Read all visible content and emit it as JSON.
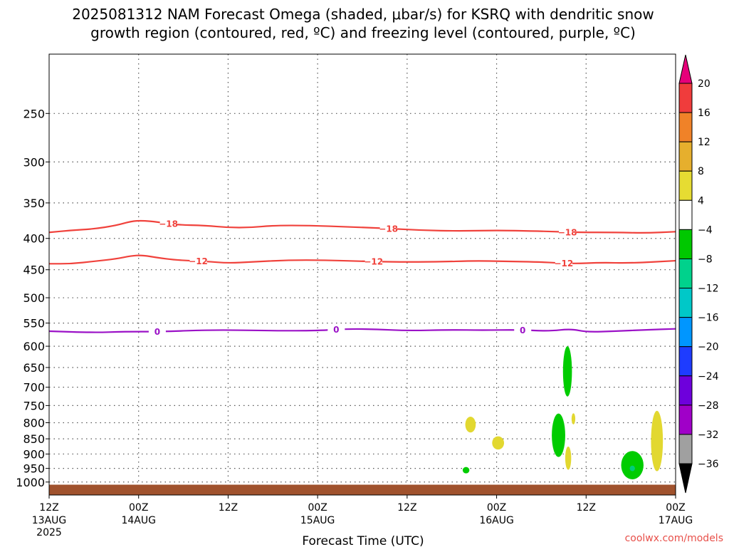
{
  "title": {
    "line1": "2025081312 NAM Forecast Omega (shaded, μbar/s) for KSRQ with dendritic snow",
    "line2": "growth region (contoured, red, ºC) and freezing level (contoured, purple, ºC)"
  },
  "watermark": "coolwx.com/models",
  "chart_data": {
    "type": "time-height cross section",
    "xlabel": "Forecast Time (UTC)",
    "x_range_hours": [
      0,
      84
    ],
    "y_scale": "log-pressure",
    "y_range_hPa": [
      1050,
      200
    ],
    "x_ticks": [
      {
        "hour": 0,
        "label": "12Z",
        "sub": "13AUG",
        "sub2": "2025"
      },
      {
        "hour": 12,
        "label": "00Z",
        "sub": "14AUG",
        "sub2": ""
      },
      {
        "hour": 24,
        "label": "12Z",
        "sub": "",
        "sub2": ""
      },
      {
        "hour": 36,
        "label": "00Z",
        "sub": "15AUG",
        "sub2": ""
      },
      {
        "hour": 48,
        "label": "12Z",
        "sub": "",
        "sub2": ""
      },
      {
        "hour": 60,
        "label": "00Z",
        "sub": "16AUG",
        "sub2": ""
      },
      {
        "hour": 72,
        "label": "12Z",
        "sub": "",
        "sub2": ""
      },
      {
        "hour": 84,
        "label": "00Z",
        "sub": "17AUG",
        "sub2": ""
      }
    ],
    "y_ticks": [
      250,
      300,
      350,
      400,
      450,
      500,
      550,
      600,
      650,
      700,
      750,
      800,
      850,
      900,
      950,
      1000
    ],
    "grid": true,
    "contours": [
      {
        "name": "-18",
        "color": "#f0423c",
        "labels_at_hours": [
          16,
          45.5,
          69.5
        ],
        "points": [
          [
            0,
            391
          ],
          [
            3,
            388
          ],
          [
            6,
            386
          ],
          [
            9,
            381
          ],
          [
            11,
            375
          ],
          [
            12.5,
            374
          ],
          [
            14.5,
            376
          ],
          [
            17,
            380
          ],
          [
            21,
            381
          ],
          [
            24,
            384
          ],
          [
            27,
            384
          ],
          [
            30,
            381
          ],
          [
            35,
            381
          ],
          [
            40,
            383
          ],
          [
            45,
            385
          ],
          [
            50,
            388
          ],
          [
            55,
            389
          ],
          [
            60,
            388
          ],
          [
            65,
            389
          ],
          [
            68,
            390
          ],
          [
            71,
            391
          ],
          [
            76,
            391
          ],
          [
            80,
            392
          ],
          [
            84,
            390
          ]
        ]
      },
      {
        "name": "-12",
        "color": "#f0423c",
        "labels_at_hours": [
          20,
          43.5,
          69
        ],
        "points": [
          [
            0,
            440
          ],
          [
            3,
            440
          ],
          [
            6,
            436
          ],
          [
            9,
            432
          ],
          [
            11,
            427
          ],
          [
            12.5,
            426
          ],
          [
            14.5,
            430
          ],
          [
            17,
            434
          ],
          [
            21,
            436
          ],
          [
            24,
            439
          ],
          [
            27,
            437
          ],
          [
            32,
            434
          ],
          [
            37,
            434
          ],
          [
            42,
            436
          ],
          [
            47,
            437
          ],
          [
            52,
            437
          ],
          [
            57,
            435
          ],
          [
            61,
            436
          ],
          [
            66,
            437
          ],
          [
            70,
            440
          ],
          [
            74,
            438
          ],
          [
            78,
            439
          ],
          [
            84,
            435
          ]
        ]
      },
      {
        "name": "0",
        "color": "#9b12c7",
        "labels_at_hours": [
          14.5,
          38.5,
          63.5
        ],
        "points": [
          [
            0,
            567
          ],
          [
            6,
            570
          ],
          [
            10,
            568
          ],
          [
            15,
            568
          ],
          [
            22,
            564
          ],
          [
            30,
            566
          ],
          [
            36,
            566
          ],
          [
            40,
            562
          ],
          [
            44,
            563
          ],
          [
            48,
            566
          ],
          [
            54,
            564
          ],
          [
            58,
            565
          ],
          [
            63,
            564
          ],
          [
            67,
            567
          ],
          [
            70,
            562
          ],
          [
            72,
            569
          ],
          [
            76,
            567
          ],
          [
            80,
            564
          ],
          [
            84,
            562
          ]
        ]
      }
    ],
    "omega_blobs": [
      {
        "range": "-8 to -4",
        "color": "#00cc00",
        "center_hour": 69.5,
        "center_hPa": 655,
        "hour_halfwidth": 0.6,
        "hPa_top": 600,
        "hPa_bottom": 725
      },
      {
        "range": "4 to 8",
        "color": "#e2d830",
        "center_hour": 56.5,
        "center_hPa": 805,
        "hour_halfwidth": 0.7,
        "hPa_top": 782,
        "hPa_bottom": 830
      },
      {
        "range": "4 to 8",
        "color": "#e2d830",
        "center_hour": 60.2,
        "center_hPa": 863,
        "hour_halfwidth": 0.8,
        "hPa_top": 842,
        "hPa_bottom": 885
      },
      {
        "range": "-8 to -4",
        "color": "#00cc00",
        "center_hour": 68.3,
        "center_hPa": 830,
        "hour_halfwidth": 0.9,
        "hPa_top": 773,
        "hPa_bottom": 910
      },
      {
        "range": "4 to 8",
        "color": "#e2d830",
        "center_hour": 70.3,
        "center_hPa": 792,
        "hour_halfwidth": 0.25,
        "hPa_top": 772,
        "hPa_bottom": 805
      },
      {
        "range": "4 to 8",
        "color": "#e2d830",
        "center_hour": 69.6,
        "center_hPa": 910,
        "hour_halfwidth": 0.4,
        "hPa_top": 875,
        "hPa_bottom": 955
      },
      {
        "range": "4 to 8",
        "color": "#e2d830",
        "center_hour": 81.5,
        "center_hPa": 860,
        "hour_halfwidth": 0.8,
        "hPa_top": 765,
        "hPa_bottom": 960
      },
      {
        "range": "-8 to -4",
        "color": "#00cc00",
        "center_hour": 78.2,
        "center_hPa": 935,
        "hour_halfwidth": 1.5,
        "hPa_top": 890,
        "hPa_bottom": 990
      },
      {
        "range": "-8 to -4",
        "color": "#00cc00",
        "center_hour": 55.9,
        "center_hPa": 957,
        "hour_halfwidth": 0.45,
        "hPa_top": 945,
        "hPa_bottom": 968
      },
      {
        "range": "-12 to -8",
        "color": "#00cc7c",
        "center_hour": 78.2,
        "center_hPa": 950,
        "hour_halfwidth": 0.35,
        "hPa_top": 940,
        "hPa_bottom": 960
      }
    ],
    "surface": {
      "color": "#a0522d",
      "top_hPa": 1010
    },
    "colorbar": {
      "labels": [
        "20",
        "16",
        "12",
        "8",
        "4",
        "-4",
        "-8",
        "-12",
        "-16",
        "-20",
        "-24",
        "-28",
        "-32",
        "-36"
      ],
      "colors": [
        "#f03c3c",
        "#f08228",
        "#e6af2d",
        "#e6dc32",
        "#ffffff",
        "#00c800",
        "#00d28c",
        "#00c8c8",
        "#0096ff",
        "#1e3cff",
        "#6e00dc",
        "#a000c8",
        "#a0a0a0"
      ],
      "top_arrow_color": "#e6007a",
      "bottom_arrow_color": "#000000"
    }
  }
}
